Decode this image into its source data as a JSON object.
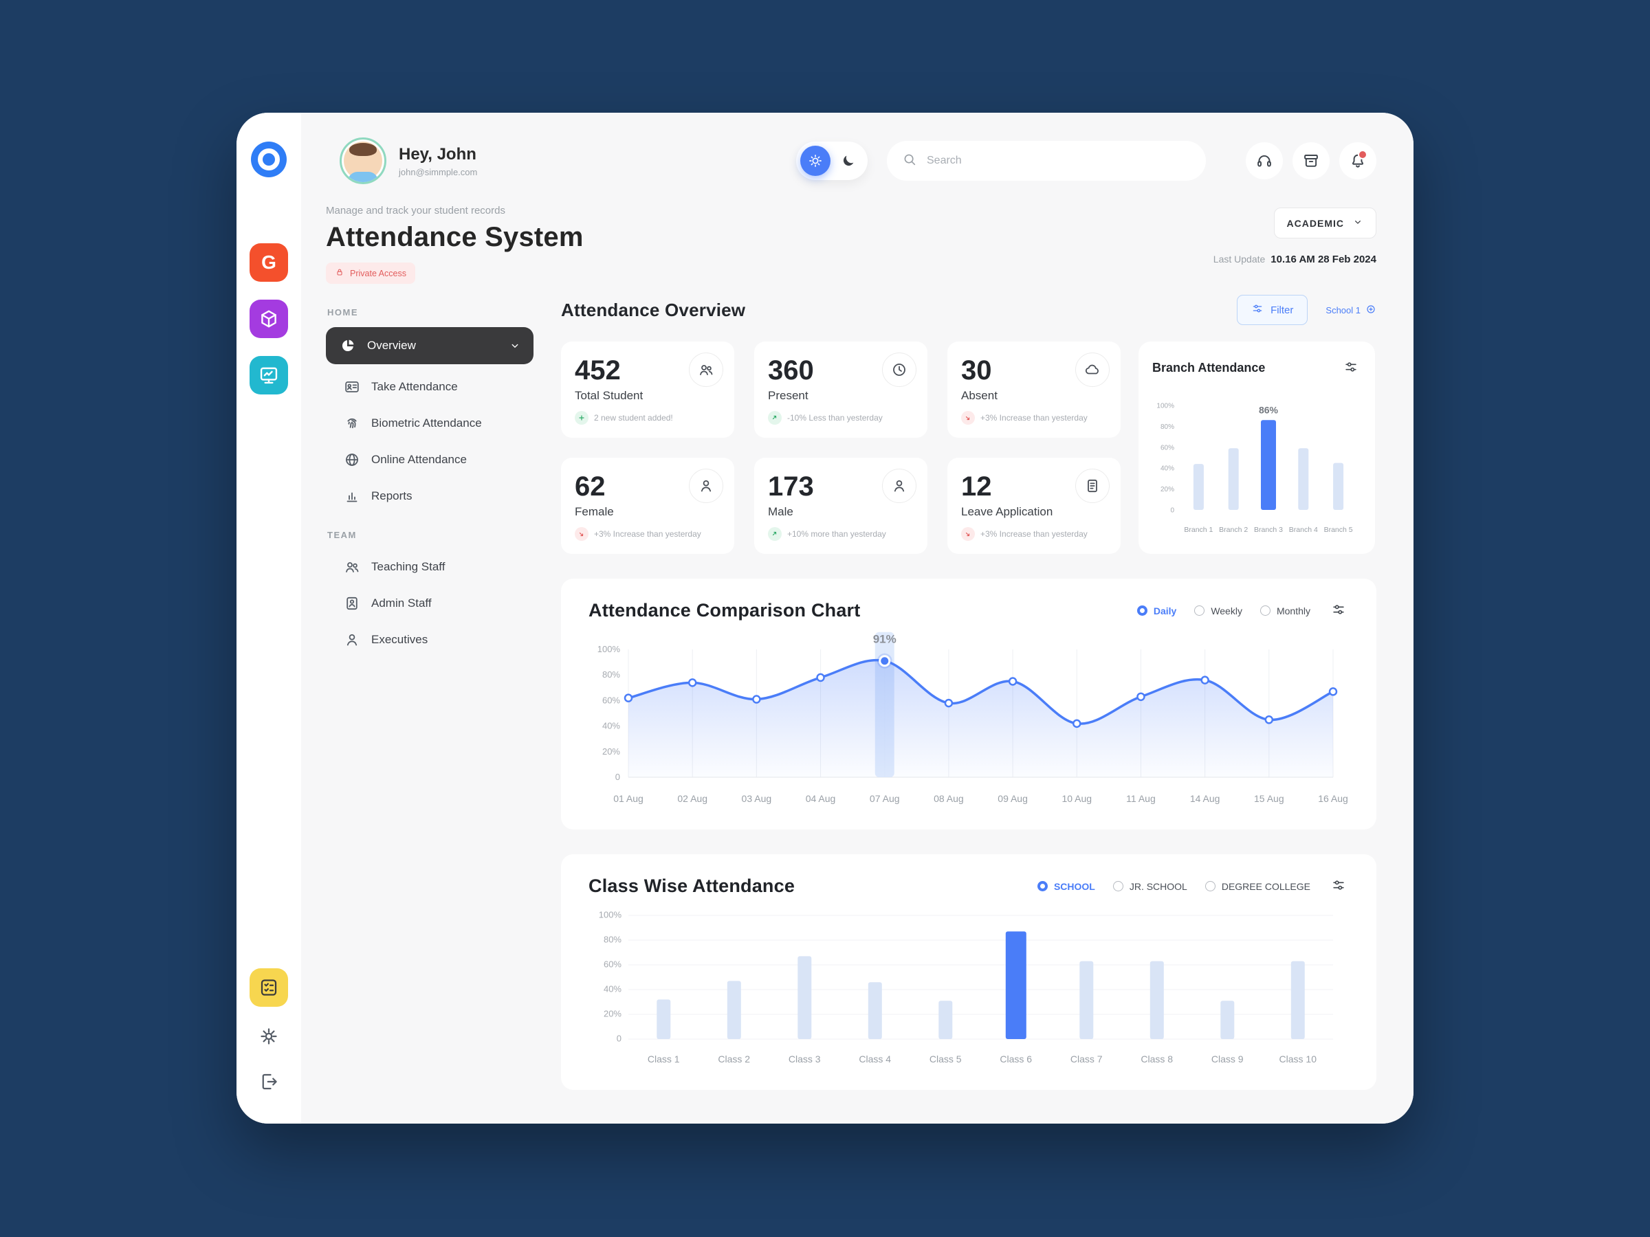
{
  "colors": {
    "accent": "#4a7df8",
    "bar_muted": "#d9e4f6",
    "navy": "#1d3d63",
    "danger": "#e25c5c",
    "success": "#2fab68"
  },
  "rail": {
    "apps": [
      {
        "name": "g-app-icon",
        "color": "#f4502c",
        "glyph": "G"
      },
      {
        "name": "box-app-icon",
        "color": "#a43be0",
        "icon": "cube-icon"
      },
      {
        "name": "board-app-icon",
        "color": "#22b8cf",
        "icon": "board-icon"
      }
    ],
    "bottom": [
      {
        "name": "attendance-tool-icon",
        "color": "#f7d64f",
        "icon": "checklist-icon"
      },
      {
        "name": "settings-button",
        "icon": "gear-icon"
      },
      {
        "name": "logout-button",
        "icon": "logout-icon"
      }
    ]
  },
  "header": {
    "greeting": "Hey, John",
    "email": "john@simmple.com",
    "search_placeholder": "Search",
    "buttons": [
      {
        "name": "support-button",
        "icon": "headset-icon"
      },
      {
        "name": "archive-button",
        "icon": "archive-icon"
      },
      {
        "name": "notifications-button",
        "icon": "bell-icon",
        "dot": true
      }
    ]
  },
  "page": {
    "subtitle": "Manage and track your student records",
    "title": "Attendance System",
    "access_badge": "Private Access",
    "academic_button": "ACADEMIC",
    "last_update_label": "Last Update",
    "last_update_value": "10.16 AM 28 Feb 2024"
  },
  "nav": {
    "sections": [
      {
        "label": "HOME",
        "items": [
          {
            "label": "Overview",
            "icon": "pie-icon",
            "active": true
          },
          {
            "label": "Take Attendance",
            "icon": "id-card-icon"
          },
          {
            "label": "Biometric Attendance",
            "icon": "fingerprint-icon"
          },
          {
            "label": "Online Attendance",
            "icon": "globe-icon"
          },
          {
            "label": "Reports",
            "icon": "bar-chart-icon"
          }
        ]
      },
      {
        "label": "TEAM",
        "items": [
          {
            "label": "Teaching Staff",
            "icon": "people-icon"
          },
          {
            "label": "Admin Staff",
            "icon": "badge-icon"
          },
          {
            "label": "Executives",
            "icon": "person-icon"
          }
        ]
      }
    ]
  },
  "overview": {
    "heading": "Attendance Overview",
    "filter_label": "Filter",
    "school_label": "School 1",
    "stats": [
      {
        "value": "452",
        "label": "Total Student",
        "icon": "users-icon",
        "note": "2 new student added!",
        "trend": "plus-green"
      },
      {
        "value": "360",
        "label": "Present",
        "icon": "clock-icon",
        "note": "-10% Less than yesterday",
        "trend": "up-green"
      },
      {
        "value": "30",
        "label": "Absent",
        "icon": "cloud-icon",
        "note": "+3% Increase than yesterday",
        "trend": "down-red"
      },
      {
        "value": "62",
        "label": "Female",
        "icon": "person-icon",
        "note": "+3% Increase than yesterday",
        "trend": "down-red"
      },
      {
        "value": "173",
        "label": "Male",
        "icon": "person-icon",
        "note": "+10% more than yesterday",
        "trend": "up-green"
      },
      {
        "value": "12",
        "label": "Leave Application",
        "icon": "document-icon",
        "note": "+3% Increase than yesterday",
        "trend": "down-red"
      }
    ]
  },
  "chart_data": [
    {
      "type": "bar",
      "title": "Branch Attendance",
      "categories": [
        "Branch 1",
        "Branch 2",
        "Branch 3",
        "Branch 4",
        "Branch 5"
      ],
      "values": [
        44,
        59,
        86,
        59,
        45
      ],
      "highlight_index": 2,
      "highlight_label": "86%",
      "ylim": [
        0,
        100
      ],
      "yticks": [
        "0",
        "20%",
        "40%",
        "60%",
        "80%",
        "100%"
      ],
      "grid": false,
      "legend": "none"
    },
    {
      "type": "line",
      "title": "Attendance Comparison Chart",
      "x": [
        "01 Aug",
        "02 Aug",
        "03 Aug",
        "04 Aug",
        "07 Aug",
        "08 Aug",
        "09 Aug",
        "10 Aug",
        "11 Aug",
        "14 Aug",
        "15 Aug",
        "16 Aug"
      ],
      "values": [
        62,
        74,
        61,
        78,
        91,
        58,
        75,
        42,
        63,
        76,
        45,
        67
      ],
      "highlight_index": 4,
      "highlight_label": "91%",
      "ylim": [
        0,
        100
      ],
      "yticks": [
        "0",
        "20%",
        "40%",
        "60%",
        "80%",
        "100%"
      ],
      "grid": "vertical",
      "controls": [
        {
          "label": "Daily",
          "selected": true
        },
        {
          "label": "Weekly",
          "selected": false
        },
        {
          "label": "Monthly",
          "selected": false
        }
      ]
    },
    {
      "type": "bar",
      "title": "Class Wise Attendance",
      "categories": [
        "Class 1",
        "Class 2",
        "Class 3",
        "Class 4",
        "Class 5",
        "Class 6",
        "Class 7",
        "Class 8",
        "Class 9",
        "Class 10"
      ],
      "values": [
        32,
        47,
        67,
        46,
        31,
        87,
        63,
        63,
        31,
        63
      ],
      "highlight_index": 5,
      "ylim": [
        0,
        100
      ],
      "yticks": [
        "0",
        "20%",
        "40%",
        "60%",
        "80%",
        "100%"
      ],
      "grid": "horizontal",
      "controls": [
        {
          "label": "SCHOOL",
          "selected": true
        },
        {
          "label": "JR. SCHOOL",
          "selected": false
        },
        {
          "label": "DEGREE COLLEGE",
          "selected": false
        }
      ]
    }
  ]
}
